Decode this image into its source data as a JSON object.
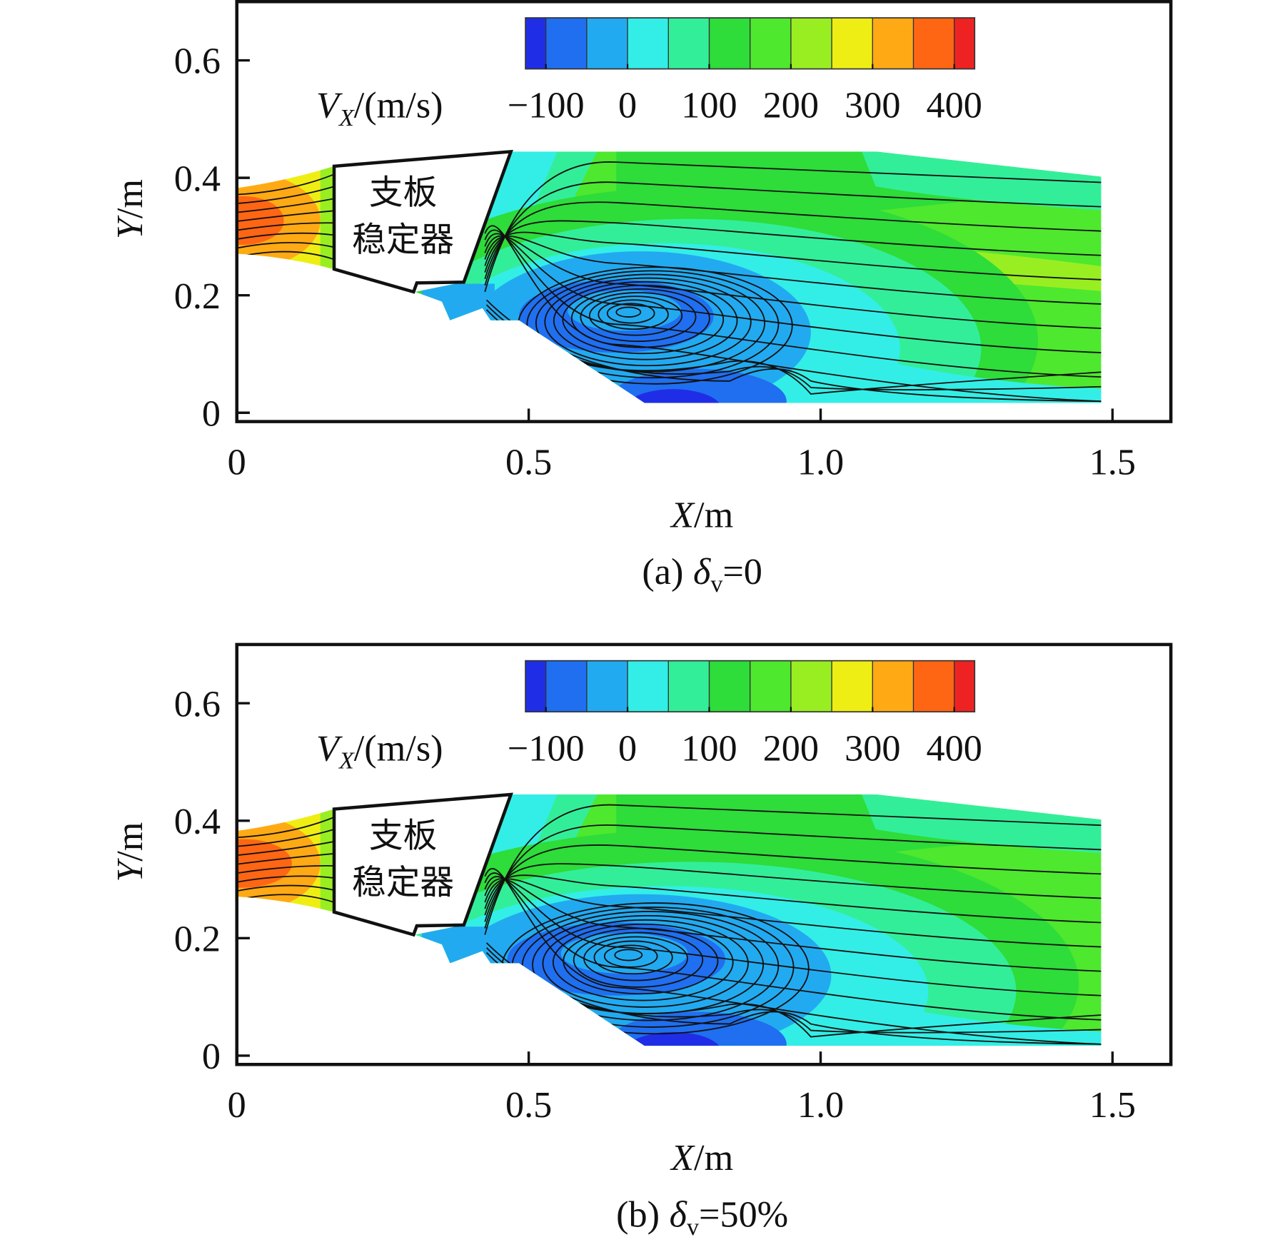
{
  "chart_data": [
    {
      "type": "contour",
      "caption": {
        "prefix": "(a)",
        "symbol": "δ",
        "subscript": "v",
        "suffix": "=0"
      },
      "xlabel": {
        "symbol": "X",
        "unit": "/m"
      },
      "ylabel": {
        "symbol": "Y",
        "unit": "/m"
      },
      "xlim": [
        0,
        1.6
      ],
      "ylim": [
        -0.015,
        0.7
      ],
      "xticks": [
        0,
        0.5,
        {
          "value": 1,
          "label": "1.0"
        },
        1.5
      ],
      "yticks": [
        0,
        0.2,
        0.4,
        0.6
      ],
      "colorbar": {
        "label": {
          "symbol": "V",
          "subscript": "X",
          "unit": "/(m/s)"
        },
        "clim": [
          -125,
          425
        ],
        "levels": [
          -125,
          -100,
          -50,
          0,
          50,
          100,
          150,
          200,
          250,
          300,
          350,
          400,
          425
        ],
        "colors": [
          "#1f2ee6",
          "#1f6ff0",
          "#22aaf0",
          "#33eee6",
          "#33ee99",
          "#2edc3a",
          "#4ee82e",
          "#99ee22",
          "#eeee14",
          "#ffaa14",
          "#ff6614",
          "#ee2222"
        ],
        "ticks": [
          {
            "value": -100,
            "label": "−100"
          },
          0,
          100,
          200,
          300,
          400
        ]
      },
      "annotations": [
        "支板",
        "稳定器"
      ]
    },
    {
      "type": "contour",
      "caption": {
        "prefix": "(b)",
        "symbol": "δ",
        "subscript": "v",
        "suffix": "=50%"
      },
      "xlabel": {
        "symbol": "X",
        "unit": "/m"
      },
      "ylabel": {
        "symbol": "Y",
        "unit": "/m"
      },
      "xlim": [
        0,
        1.6
      ],
      "ylim": [
        -0.015,
        0.7
      ],
      "xticks": [
        0,
        0.5,
        {
          "value": 1,
          "label": "1.0"
        },
        1.5
      ],
      "yticks": [
        0,
        0.2,
        0.4,
        0.6
      ],
      "colorbar": {
        "label": {
          "symbol": "V",
          "subscript": "X",
          "unit": "/(m/s)"
        },
        "clim": [
          -125,
          425
        ],
        "levels": [
          -125,
          -100,
          -50,
          0,
          50,
          100,
          150,
          200,
          250,
          300,
          350,
          400,
          425
        ],
        "colors": [
          "#1f2ee6",
          "#1f6ff0",
          "#22aaf0",
          "#33eee6",
          "#33ee99",
          "#2edc3a",
          "#4ee82e",
          "#99ee22",
          "#eeee14",
          "#ffaa14",
          "#ff6614",
          "#ee2222"
        ],
        "ticks": [
          {
            "value": -100,
            "label": "−100"
          },
          0,
          100,
          200,
          300,
          400
        ]
      },
      "annotations": [
        "支板",
        "稳定器"
      ]
    }
  ]
}
